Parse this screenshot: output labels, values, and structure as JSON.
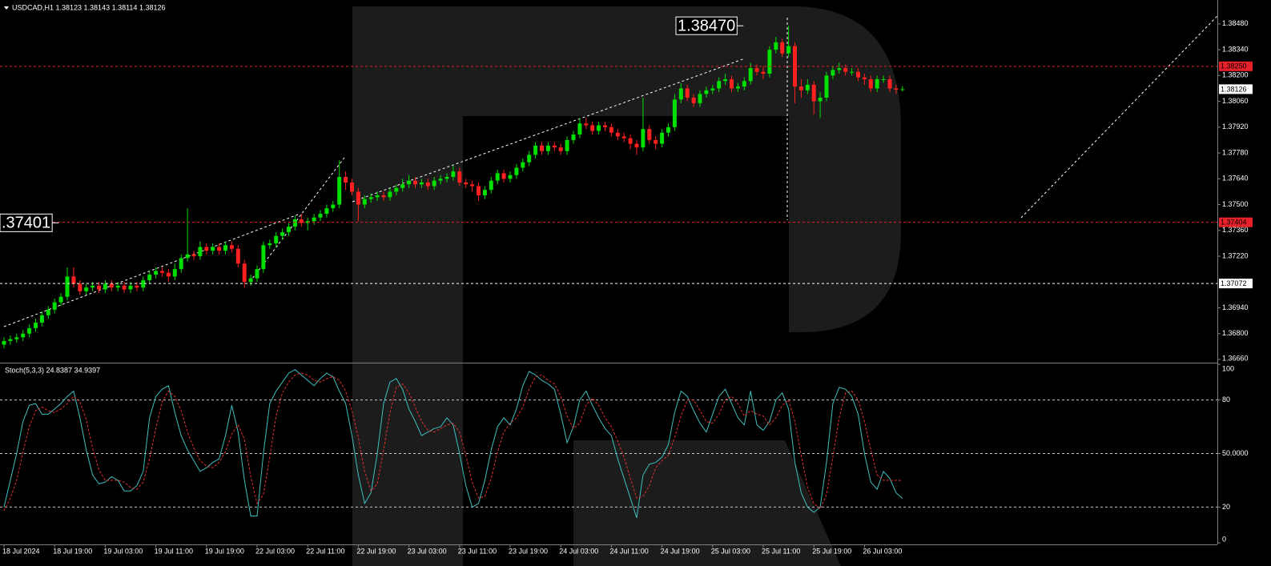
{
  "chart_data": [
    {
      "type": "candlestick",
      "title": "USDCAD,H1  1.38123 1.38143 1.38114 1.38126",
      "ylim": [
        1.36647,
        1.38601
      ],
      "yticks": [
        {
          "value": 1.3848,
          "label": "1.38480"
        },
        {
          "value": 1.3834,
          "label": "1.38340"
        },
        {
          "value": 1.382,
          "label": "1.38200"
        },
        {
          "value": 1.3806,
          "label": "1.38060"
        },
        {
          "value": 1.3792,
          "label": "1.37920"
        },
        {
          "value": 1.3778,
          "label": "1.37780"
        },
        {
          "value": 1.3764,
          "label": "1.37640"
        },
        {
          "value": 1.375,
          "label": "1.37500"
        },
        {
          "value": 1.3736,
          "label": "1.37360"
        },
        {
          "value": 1.3722,
          "label": "1.37220"
        },
        {
          "value": 1.3694,
          "label": "1.36940"
        },
        {
          "value": 1.368,
          "label": "1.36800"
        },
        {
          "value": 1.3666,
          "label": "1.36660"
        }
      ],
      "up_color": "#00e000",
      "down_color": "#ff2020",
      "levels": [
        {
          "value": 1.3825,
          "label": "1.38250",
          "color": "#e8202a"
        },
        {
          "value": 1.37404,
          "label": "1.37404",
          "color": "#e8202a"
        },
        {
          "value": 1.37072,
          "label": "1.37072",
          "color": "#ffffff"
        }
      ],
      "annotations": [
        {
          "value": 1.3847,
          "label": "1.38470"
        },
        {
          "value": 1.37401,
          "label": ".37401"
        }
      ],
      "categories": [
        "18 Jul 2024",
        null,
        null,
        null,
        null,
        null,
        null,
        null,
        "18 Jul 19:00",
        null,
        null,
        null,
        null,
        null,
        null,
        null,
        "19 Jul 03:00",
        null,
        null,
        null,
        null,
        null,
        null,
        null,
        "19 Jul 11:00",
        null,
        null,
        null,
        null,
        null,
        null,
        null,
        "19 Jul 19:00",
        null,
        null,
        null,
        null,
        null,
        null,
        null,
        "22 Jul 03:00",
        null,
        null,
        null,
        null,
        null,
        null,
        null,
        "22 Jul 11:00",
        null,
        null,
        null,
        null,
        null,
        null,
        null,
        "22 Jul 19:00",
        null,
        null,
        null,
        null,
        null,
        null,
        null,
        "23 Jul 03:00",
        null,
        null,
        null,
        null,
        null,
        null,
        null,
        "23 Jul 11:00",
        null,
        null,
        null,
        null,
        null,
        null,
        null,
        "23 Jul 19:00",
        null,
        null,
        null,
        null,
        null,
        null,
        null,
        "24 Jul 03:00",
        null,
        null,
        null,
        null,
        null,
        null,
        null,
        "24 Jul 11:00",
        null,
        null,
        null,
        null,
        null,
        null,
        null,
        "24 Jul 19:00",
        null,
        null,
        null,
        null,
        null,
        null,
        null,
        "25 Jul 03:00",
        null,
        null,
        null,
        null,
        null,
        null,
        null,
        "25 Jul 11:00",
        null,
        null,
        null,
        null,
        null,
        null,
        null,
        "25 Jul 19:00",
        null,
        null,
        null,
        null,
        null,
        null,
        null,
        "26 Jul 03:00",
        null,
        null,
        null,
        null,
        null,
        null
      ],
      "open": [
        1.3674,
        1.3676,
        1.3677,
        1.3678,
        1.368,
        1.3683,
        1.3686,
        1.369,
        1.3693,
        1.3697,
        1.37,
        1.3711,
        1.3707,
        1.3703,
        1.3705,
        1.3706,
        1.3704,
        1.3707,
        1.3705,
        1.3706,
        1.3704,
        1.3706,
        1.3705,
        1.3709,
        1.3712,
        1.3714,
        1.3713,
        1.3711,
        1.3715,
        1.3721,
        1.3723,
        1.3722,
        1.3727,
        1.3725,
        1.3727,
        1.3725,
        1.3728,
        1.3726,
        1.3718,
        1.3708,
        1.371,
        1.3715,
        1.3728,
        1.3729,
        1.3733,
        1.3735,
        1.3738,
        1.3742,
        1.374,
        1.3741,
        1.3743,
        1.3745,
        1.3748,
        1.375,
        1.3765,
        1.3762,
        1.3757,
        1.375,
        1.3753,
        1.3754,
        1.3755,
        1.3754,
        1.3757,
        1.3759,
        1.3761,
        1.3763,
        1.3761,
        1.3762,
        1.376,
        1.3763,
        1.3764,
        1.3765,
        1.3768,
        1.3762,
        1.3761,
        1.376,
        1.3755,
        1.3758,
        1.3763,
        1.3767,
        1.3764,
        1.3766,
        1.377,
        1.3773,
        1.3777,
        1.3782,
        1.3779,
        1.3782,
        1.3781,
        1.3779,
        1.3785,
        1.3788,
        1.3794,
        1.3793,
        1.379,
        1.3793,
        1.3792,
        1.3789,
        1.3787,
        1.3786,
        1.3783,
        1.3781,
        1.3791,
        1.3785,
        1.3783,
        1.3789,
        1.3792,
        1.3807,
        1.3813,
        1.3808,
        1.3805,
        1.381,
        1.3812,
        1.3813,
        1.3817,
        1.3818,
        1.3813,
        1.3814,
        1.3817,
        1.3824,
        1.3822,
        1.3821,
        1.3834,
        1.3838,
        1.3832,
        1.3836,
        1.3814,
        1.3812,
        1.3815,
        1.3806,
        1.3808,
        1.382,
        1.3823,
        1.3824,
        1.3822,
        1.3822,
        1.3819,
        1.3818,
        1.3813,
        1.3818,
        1.3818,
        1.3813,
        1.38123
      ],
      "high": [
        1.3678,
        1.3679,
        1.368,
        1.3682,
        1.3685,
        1.3688,
        1.3692,
        1.3695,
        1.3699,
        1.3702,
        1.3716,
        1.3716,
        1.3709,
        1.3707,
        1.3708,
        1.3708,
        1.3709,
        1.3709,
        1.3708,
        1.3708,
        1.3708,
        1.3708,
        1.3711,
        1.3714,
        1.3716,
        1.3716,
        1.3715,
        1.3718,
        1.3723,
        1.3748,
        1.3725,
        1.373,
        1.3729,
        1.3729,
        1.3729,
        1.373,
        1.373,
        1.3728,
        1.372,
        1.3712,
        1.3717,
        1.373,
        1.3731,
        1.3735,
        1.3737,
        1.374,
        1.3744,
        1.3745,
        1.3743,
        1.3745,
        1.3747,
        1.375,
        1.3752,
        1.3774,
        1.3768,
        1.3764,
        1.3759,
        1.3755,
        1.3756,
        1.3757,
        1.3757,
        1.3759,
        1.3761,
        1.3764,
        1.3766,
        1.3765,
        1.3764,
        1.3764,
        1.3765,
        1.3766,
        1.3767,
        1.3771,
        1.377,
        1.3764,
        1.3763,
        1.3762,
        1.376,
        1.3765,
        1.3769,
        1.3769,
        1.3768,
        1.3772,
        1.3775,
        1.3779,
        1.3784,
        1.3784,
        1.3784,
        1.3784,
        1.3783,
        1.3787,
        1.379,
        1.3797,
        1.3797,
        1.3795,
        1.3795,
        1.3795,
        1.3794,
        1.3791,
        1.3789,
        1.3788,
        1.3785,
        1.3808,
        1.3793,
        1.3787,
        1.3791,
        1.3794,
        1.381,
        1.3816,
        1.3815,
        1.381,
        1.3812,
        1.3814,
        1.3815,
        1.3819,
        1.3821,
        1.382,
        1.3816,
        1.3819,
        1.3827,
        1.3826,
        1.3825,
        1.3836,
        1.3841,
        1.384,
        1.3847,
        1.3838,
        1.3818,
        1.3818,
        1.3817,
        1.3811,
        1.3822,
        1.3825,
        1.3827,
        1.3826,
        1.3824,
        1.3824,
        1.3821,
        1.382,
        1.382,
        1.382,
        1.382,
        1.3815,
        1.38143
      ],
      "low": [
        1.3672,
        1.3674,
        1.3675,
        1.3676,
        1.3678,
        1.3681,
        1.3684,
        1.3688,
        1.3691,
        1.3695,
        1.3698,
        1.3705,
        1.3701,
        1.3701,
        1.3703,
        1.3702,
        1.3702,
        1.3703,
        1.3703,
        1.3702,
        1.3702,
        1.3703,
        1.3703,
        1.3707,
        1.371,
        1.3711,
        1.3708,
        1.3709,
        1.3713,
        1.3719,
        1.372,
        1.372,
        1.3723,
        1.3723,
        1.3723,
        1.3723,
        1.3724,
        1.3716,
        1.3705,
        1.3706,
        1.3708,
        1.3713,
        1.3726,
        1.3727,
        1.3731,
        1.3733,
        1.3736,
        1.3738,
        1.3736,
        1.3739,
        1.3741,
        1.3743,
        1.3746,
        1.3748,
        1.3758,
        1.3755,
        1.3741,
        1.3748,
        1.3751,
        1.3752,
        1.3752,
        1.3752,
        1.3755,
        1.3757,
        1.3759,
        1.3759,
        1.3759,
        1.3758,
        1.3758,
        1.3761,
        1.3762,
        1.3763,
        1.376,
        1.3759,
        1.3757,
        1.3752,
        1.3753,
        1.3756,
        1.3761,
        1.3762,
        1.3762,
        1.3764,
        1.3768,
        1.3771,
        1.3775,
        1.3777,
        1.3777,
        1.3779,
        1.3777,
        1.3777,
        1.3783,
        1.3786,
        1.3791,
        1.3788,
        1.3788,
        1.379,
        1.3787,
        1.3785,
        1.3784,
        1.378,
        1.3777,
        1.3779,
        1.3783,
        1.378,
        1.3781,
        1.3787,
        1.379,
        1.3805,
        1.3806,
        1.3803,
        1.3803,
        1.3808,
        1.381,
        1.3811,
        1.3815,
        1.3811,
        1.3811,
        1.3812,
        1.3815,
        1.382,
        1.3818,
        1.3819,
        1.3832,
        1.383,
        1.383,
        1.3805,
        1.3808,
        1.381,
        1.3799,
        1.3797,
        1.3806,
        1.3818,
        1.3821,
        1.382,
        1.382,
        1.3817,
        1.3815,
        1.3811,
        1.3811,
        1.3816,
        1.3811,
        1.381,
        1.38114
      ],
      "close": [
        1.3676,
        1.3677,
        1.3678,
        1.368,
        1.3683,
        1.3686,
        1.369,
        1.3693,
        1.3697,
        1.37,
        1.3711,
        1.3707,
        1.3703,
        1.3705,
        1.3706,
        1.3704,
        1.3707,
        1.3705,
        1.3706,
        1.3704,
        1.3706,
        1.3705,
        1.3709,
        1.3712,
        1.3714,
        1.3713,
        1.3711,
        1.3715,
        1.3721,
        1.3723,
        1.3722,
        1.3727,
        1.3725,
        1.3727,
        1.3725,
        1.3728,
        1.3726,
        1.3718,
        1.3708,
        1.371,
        1.3715,
        1.3728,
        1.3729,
        1.3733,
        1.3735,
        1.3738,
        1.3742,
        1.374,
        1.3741,
        1.3743,
        1.3745,
        1.3748,
        1.375,
        1.3765,
        1.3762,
        1.3757,
        1.375,
        1.3753,
        1.3754,
        1.3755,
        1.3754,
        1.3757,
        1.3759,
        1.3761,
        1.3763,
        1.3761,
        1.3762,
        1.376,
        1.3763,
        1.3764,
        1.3765,
        1.3768,
        1.3762,
        1.3761,
        1.376,
        1.3755,
        1.3758,
        1.3763,
        1.3767,
        1.3764,
        1.3766,
        1.377,
        1.3773,
        1.3777,
        1.3782,
        1.3779,
        1.3782,
        1.3781,
        1.3779,
        1.3785,
        1.3788,
        1.3794,
        1.3793,
        1.379,
        1.3793,
        1.3792,
        1.3789,
        1.3787,
        1.3786,
        1.3783,
        1.3781,
        1.3791,
        1.3785,
        1.3783,
        1.3789,
        1.3792,
        1.3807,
        1.3813,
        1.3808,
        1.3805,
        1.381,
        1.3812,
        1.3813,
        1.3817,
        1.3818,
        1.3813,
        1.3814,
        1.3817,
        1.3824,
        1.3822,
        1.3821,
        1.3834,
        1.3838,
        1.3832,
        1.3836,
        1.3814,
        1.3812,
        1.3815,
        1.3806,
        1.3808,
        1.382,
        1.3823,
        1.3824,
        1.3822,
        1.3822,
        1.3819,
        1.3818,
        1.3813,
        1.3818,
        1.3818,
        1.3813,
        1.38123,
        1.38126
      ]
    },
    {
      "type": "line",
      "title": "Stoch(5,3,3) 24.8387 34.9397",
      "ylim": [
        0,
        100
      ],
      "yticks": [
        100,
        80,
        {
          "value": 50,
          "label": "50.0000"
        },
        20,
        0
      ],
      "series": [
        {
          "color": "#3fbfbf",
          "values": [
            20,
            35,
            50,
            68,
            77,
            78,
            72,
            72,
            75,
            78,
            82,
            85,
            70,
            52,
            38,
            33,
            34,
            37,
            35,
            29,
            29,
            32,
            40,
            70,
            82,
            86,
            88,
            73,
            60,
            52,
            46,
            40,
            42,
            45,
            47,
            60,
            77,
            62,
            35,
            15,
            15,
            50,
            78,
            85,
            90,
            95,
            97,
            94,
            91,
            88,
            92,
            95,
            93,
            85,
            78,
            60,
            38,
            22,
            28,
            50,
            78,
            90,
            92,
            86,
            75,
            68,
            60,
            62,
            64,
            65,
            70,
            66,
            50,
            32,
            20,
            22,
            35,
            52,
            65,
            70,
            66,
            75,
            88,
            96,
            94,
            91,
            89,
            86,
            72,
            56,
            65,
            80,
            85,
            77,
            70,
            64,
            60,
            47,
            36,
            25,
            14,
            38,
            44,
            45,
            48,
            55,
            73,
            85,
            82,
            74,
            67,
            62,
            72,
            82,
            86,
            78,
            70,
            66,
            85,
            66,
            63,
            68,
            80,
            84,
            75,
            45,
            28,
            20,
            17,
            20,
            45,
            78,
            87,
            86,
            82,
            72,
            50,
            34,
            30,
            40,
            36,
            28,
            24.8387
          ]
        },
        {
          "color": "#e03030",
          "dashed": true,
          "values": [
            18,
            25,
            35,
            51,
            65,
            74,
            76,
            74,
            73,
            75,
            78,
            82,
            79,
            69,
            53,
            41,
            35,
            35,
            35,
            34,
            31,
            30,
            34,
            47,
            64,
            79,
            85,
            82,
            74,
            62,
            53,
            46,
            43,
            42,
            45,
            51,
            61,
            66,
            58,
            37,
            22,
            27,
            48,
            71,
            84,
            90,
            94,
            95,
            94,
            91,
            90,
            92,
            93,
            91,
            85,
            74,
            59,
            40,
            29,
            33,
            52,
            73,
            87,
            89,
            84,
            76,
            68,
            63,
            62,
            64,
            66,
            67,
            62,
            49,
            34,
            25,
            26,
            36,
            51,
            62,
            67,
            70,
            76,
            86,
            93,
            94,
            91,
            89,
            82,
            71,
            64,
            67,
            77,
            81,
            77,
            70,
            65,
            57,
            48,
            36,
            25,
            26,
            32,
            42,
            46,
            49,
            59,
            71,
            80,
            80,
            74,
            68,
            67,
            72,
            80,
            82,
            78,
            71,
            74,
            72,
            71,
            66,
            70,
            77,
            80,
            68,
            49,
            31,
            22,
            19,
            27,
            48,
            70,
            84,
            85,
            80,
            68,
            52,
            38,
            35,
            35,
            35,
            34.9397
          ]
        }
      ]
    }
  ]
}
